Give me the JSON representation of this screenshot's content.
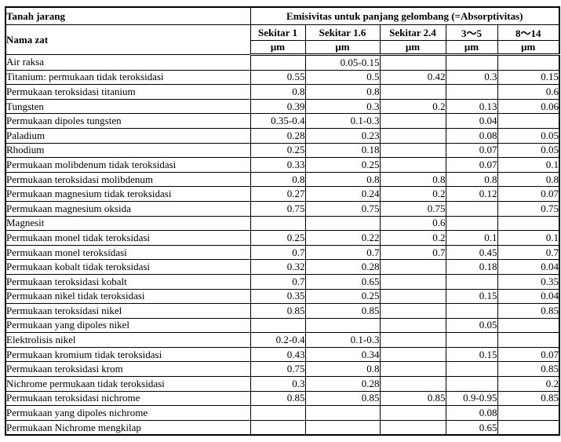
{
  "table": {
    "corner_title": "Tanah jarang",
    "name_column_header": "Nama zat",
    "span_header": "Emisivitas untuk panjang gelombang (=Absorptivitas)",
    "columns": [
      {
        "label": "Sekitar 1",
        "unit": "μm"
      },
      {
        "label": "Sekitar 1.6",
        "unit": "μm"
      },
      {
        "label": "Sekitar 2.4",
        "unit": "μm"
      },
      {
        "label": "3～5",
        "unit": "μm"
      },
      {
        "label": "8～14",
        "unit": "μm"
      }
    ],
    "rows": [
      {
        "name": "Air raksa",
        "values": [
          "",
          "0.05-0.15",
          "",
          "",
          ""
        ]
      },
      {
        "name": "Titanium: permukaan tidak teroksidasi",
        "values": [
          "0.55",
          "0.5",
          "0.42",
          "0.3",
          "0.15"
        ]
      },
      {
        "name": "Permukaan teroksidasi titanium",
        "values": [
          "0.8",
          "0.8",
          "",
          "",
          "0.6"
        ]
      },
      {
        "name": "Tungsten",
        "values": [
          "0.39",
          "0.3",
          "0.2",
          "0.13",
          "0.06"
        ]
      },
      {
        "name": "Permukaan dipoles tungsten",
        "values": [
          "0.35-0.4",
          "0.1-0.3",
          "",
          "0.04",
          ""
        ]
      },
      {
        "name": "Paladium",
        "values": [
          "0.28",
          "0.23",
          "",
          "0.08",
          "0.05"
        ]
      },
      {
        "name": "Rhodium",
        "values": [
          "0.25",
          "0.18",
          "",
          "0.07",
          "0.05"
        ]
      },
      {
        "name": "Permukaan molibdenum tidak teroksidasi",
        "values": [
          "0.33",
          "0.25",
          "",
          "0.07",
          "0.1"
        ]
      },
      {
        "name": "Permukaan teroksidasi molibdenum",
        "values": [
          "0.8",
          "0.8",
          "0.8",
          "0.8",
          "0.8"
        ]
      },
      {
        "name": "Permukaan magnesium tidak teroksidasi",
        "values": [
          "0.27",
          "0.24",
          "0.2",
          "0.12",
          "0.07"
        ]
      },
      {
        "name": "Permukaan magnesium oksida",
        "values": [
          "0.75",
          "0.75",
          "0.75",
          "",
          "0.75"
        ]
      },
      {
        "name": "Magnesit",
        "values": [
          "",
          "",
          "0.6",
          "",
          ""
        ]
      },
      {
        "name": "Permukaan monel tidak teroksidasi",
        "values": [
          "0.25",
          "0.22",
          "0.2",
          "0.1",
          "0.1"
        ]
      },
      {
        "name": "Permukaan monel teroksidasi",
        "values": [
          "0.7",
          "0.7",
          "0.7",
          "0.45",
          "0.7"
        ]
      },
      {
        "name": "Permukaan kobalt tidak teroksidasi",
        "values": [
          "0.32",
          "0.28",
          "",
          "0.18",
          "0.04"
        ]
      },
      {
        "name": "Permukaan teroksidasi kobalt",
        "values": [
          "0.7",
          "0.65",
          "",
          "",
          "0.35"
        ]
      },
      {
        "name": "Permukaan nikel tidak teroksidasi",
        "values": [
          "0.35",
          "0.25",
          "",
          "0.15",
          "0.04"
        ]
      },
      {
        "name": "Permukaan teroksidasi nikel",
        "values": [
          "0.85",
          "0.85",
          "",
          "",
          "0.85"
        ]
      },
      {
        "name": "Permukaan yang dipoles nikel",
        "values": [
          "",
          "",
          "",
          "0.05",
          ""
        ]
      },
      {
        "name": "Elektrolisis nikel",
        "values": [
          "0.2-0.4",
          "0.1-0.3",
          "",
          "",
          ""
        ]
      },
      {
        "name": "Permukaan kromium tidak teroksidasi",
        "values": [
          "0.43",
          "0.34",
          "",
          "0.15",
          "0.07"
        ]
      },
      {
        "name": "Permukaan teroksidasi krom",
        "values": [
          "0.75",
          "0.8",
          "",
          "",
          "0.85"
        ]
      },
      {
        "name": "Nichrome permukaan tidak teroksidasi",
        "values": [
          "0.3",
          "0.28",
          "",
          "",
          "0.2"
        ]
      },
      {
        "name": "Permukaan teroksidasi nichrome",
        "values": [
          "0.85",
          "0.85",
          "0.85",
          "0.9-0.95",
          "0.85"
        ]
      },
      {
        "name": "Permukaan yang dipoles nichrome",
        "values": [
          "",
          "",
          "",
          "0.08",
          ""
        ]
      },
      {
        "name": "Permukaan Nichrome mengkilap",
        "values": [
          "",
          "",
          "",
          "0.65",
          ""
        ]
      }
    ]
  },
  "colors": {
    "border": "#000000",
    "background": "#ffffff",
    "text": "#000000"
  }
}
